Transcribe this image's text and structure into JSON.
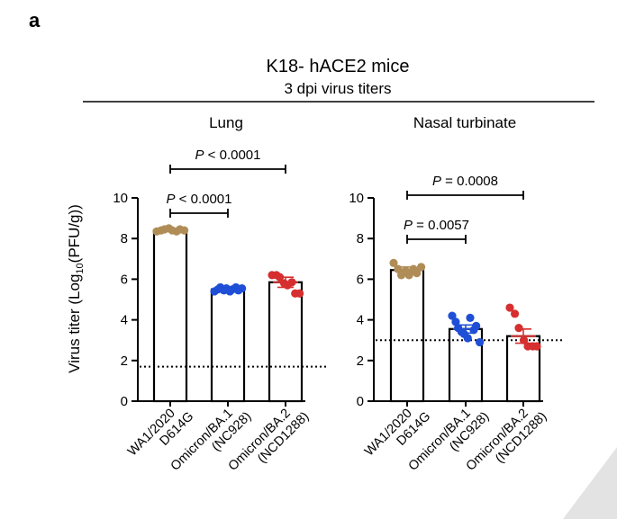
{
  "panel_label": "a",
  "figure": {
    "title": "K18- hACE2 mice",
    "subtitle": "3 dpi virus titers",
    "ylabel_main": "Virus titer (Log",
    "ylabel_sub": "10",
    "ylabel_end": "(PFU/g))"
  },
  "categories": [
    [
      "WA1/2020",
      "D614G"
    ],
    [
      "Omicron/BA.1",
      "(NC928)"
    ],
    [
      "Omicron/BA.2",
      "(NCD1288)"
    ]
  ],
  "colors": {
    "WA1/2020": "#b08d57",
    "Omicron/BA.1": "#1f4fd6",
    "Omicron/BA.2": "#d62f2f",
    "bar_edge": "#000000"
  },
  "chart_data": [
    {
      "type": "bar",
      "title": "Lung",
      "categories": [
        "WA1/2020 D614G",
        "Omicron/BA.1 (NC928)",
        "Omicron/BA.2 (NCD1288)"
      ],
      "values": [
        8.4,
        5.5,
        5.85
      ],
      "error": [
        0.05,
        0.05,
        0.25
      ],
      "points": [
        [
          8.35,
          8.4,
          8.45,
          8.5,
          8.4,
          8.35,
          8.45,
          8.4
        ],
        [
          5.4,
          5.5,
          5.6,
          5.45,
          5.55,
          5.4,
          5.5,
          5.6,
          5.45,
          5.55
        ],
        [
          6.2,
          6.2,
          6.1,
          5.8,
          5.7,
          5.85,
          5.3,
          5.3
        ]
      ],
      "ylim": [
        0,
        10
      ],
      "yticks": [
        0,
        2,
        4,
        6,
        8,
        10
      ],
      "detection_limit": 1.7,
      "comparisons": [
        {
          "groups": [
            0,
            1
          ],
          "label": "P < 0.0001"
        },
        {
          "groups": [
            0,
            2
          ],
          "label": "P < 0.0001"
        }
      ]
    },
    {
      "type": "bar",
      "title": "Nasal turbinate",
      "categories": [
        "WA1/2020 D614G",
        "Omicron/BA.1 (NC928)",
        "Omicron/BA.2 (NCD1288)"
      ],
      "values": [
        6.45,
        3.55,
        3.2
      ],
      "error": [
        0.15,
        0.2,
        0.35
      ],
      "points": [
        [
          6.8,
          6.5,
          6.2,
          6.4,
          6.2,
          6.5,
          6.3,
          6.6
        ],
        [
          4.2,
          3.9,
          3.6,
          3.4,
          3.3,
          3.1,
          4.1,
          3.5,
          3.7,
          2.9
        ],
        [
          4.6,
          4.3,
          3.6,
          3.0,
          2.7,
          2.7,
          2.7
        ]
      ],
      "ylim": [
        0,
        10
      ],
      "yticks": [
        0,
        2,
        4,
        6,
        8,
        10
      ],
      "detection_limit": 3.0,
      "comparisons": [
        {
          "groups": [
            0,
            1
          ],
          "label": "P = 0.0057"
        },
        {
          "groups": [
            0,
            2
          ],
          "label": "P = 0.0008"
        }
      ]
    }
  ]
}
